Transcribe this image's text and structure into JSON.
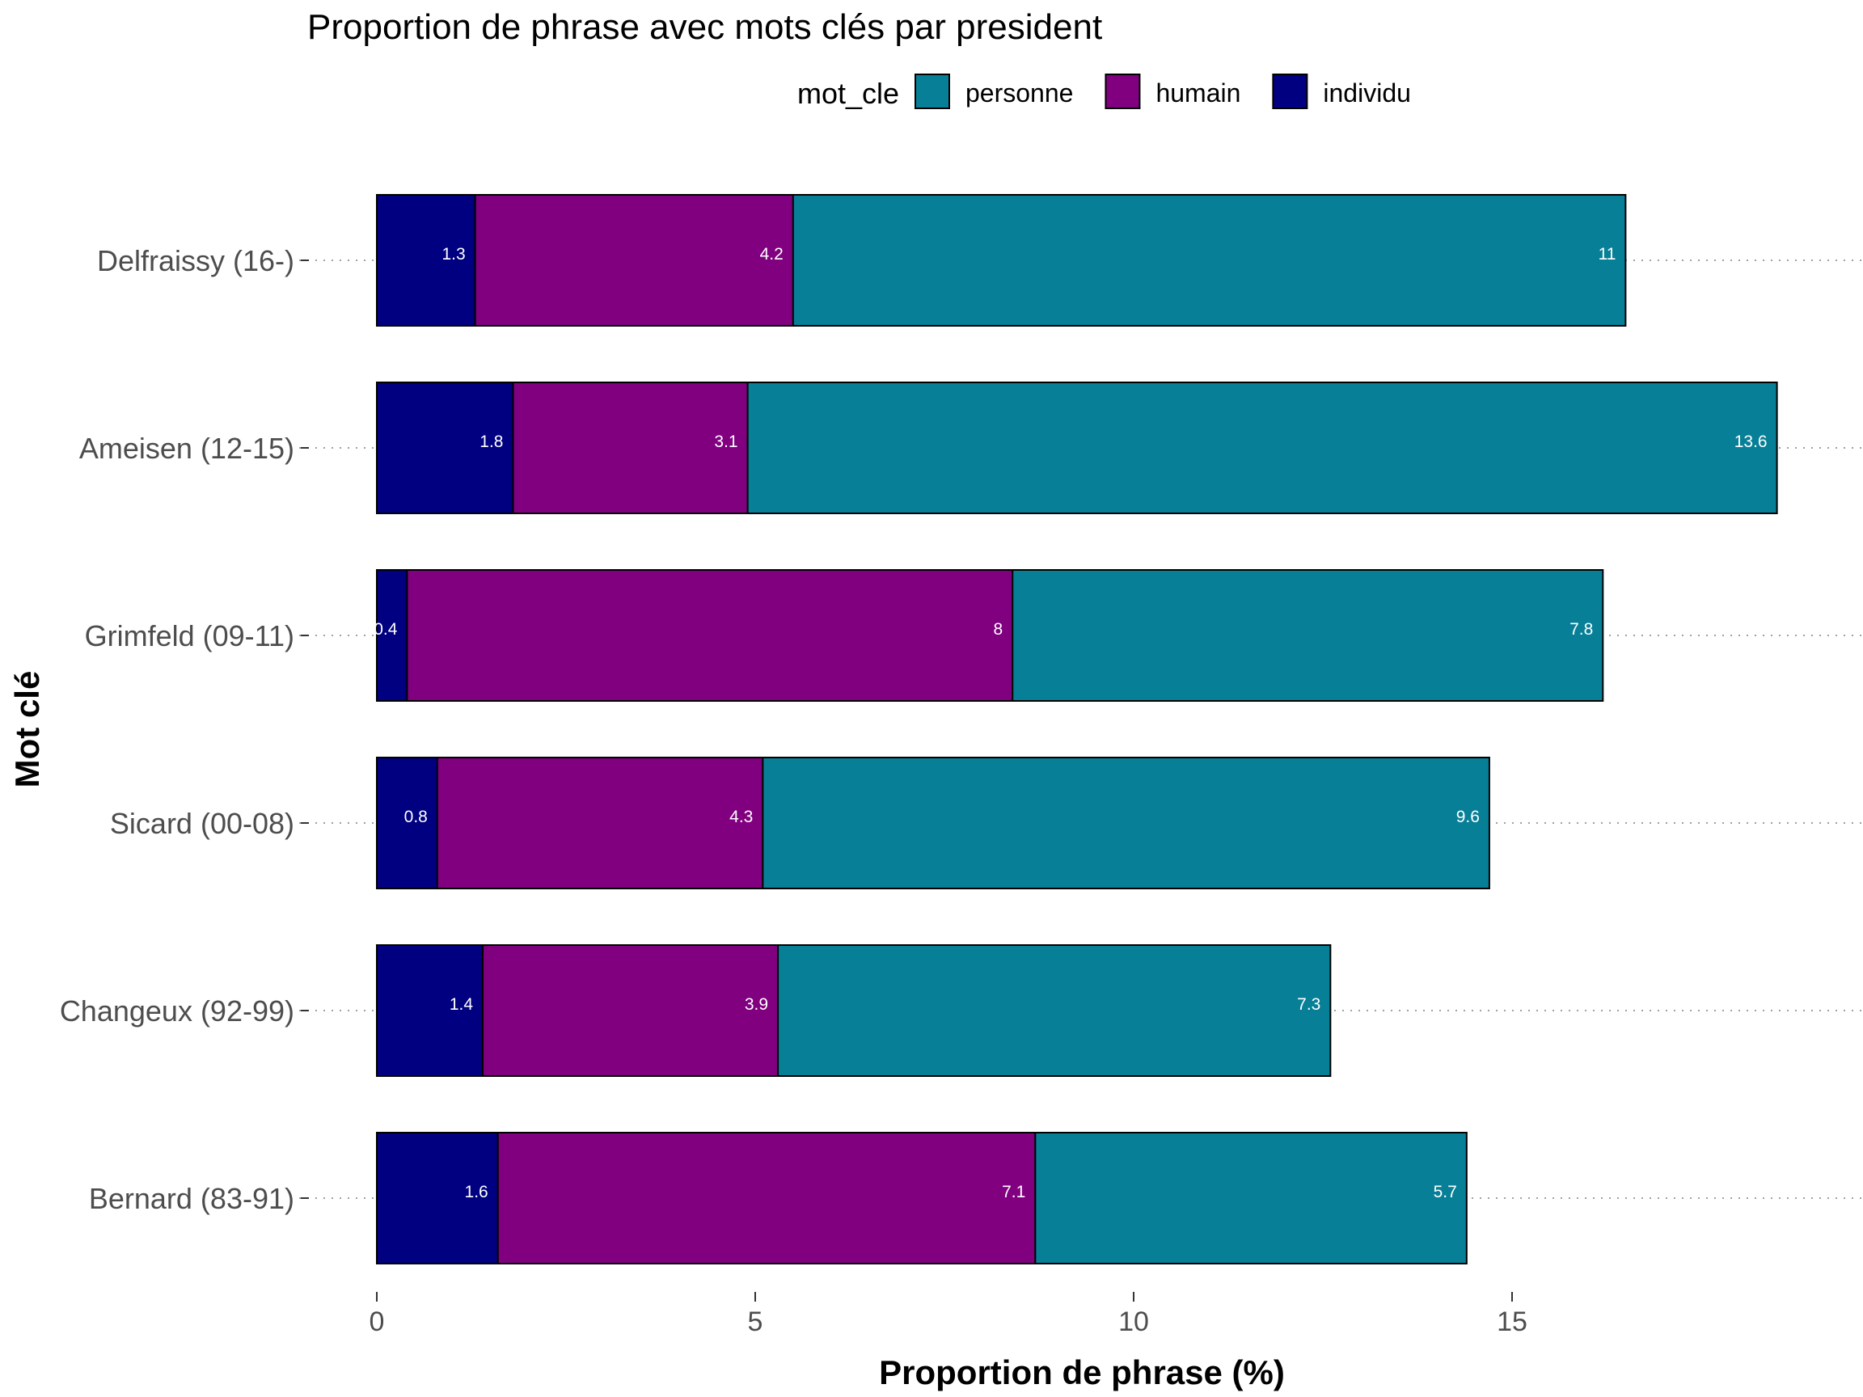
{
  "chart_data": {
    "type": "bar",
    "orientation": "horizontal",
    "stacked": true,
    "title": "Proportion de phrase avec mots clés par president",
    "xlabel": "Proportion de phrase (%)",
    "ylabel": "Mot clé",
    "legend_title": "mot_cle",
    "legend_position": "top",
    "categories": [
      "Delfraissy (16-)",
      "Ameisen (12-15)",
      "Grimfeld (09-11)",
      "Sicard (00-08)",
      "Changeux (92-99)",
      "Bernard (83-91)"
    ],
    "series": [
      {
        "name": "individu",
        "color": "#000080",
        "values": [
          1.3,
          1.8,
          0.4,
          0.8,
          1.4,
          1.6
        ],
        "labels": [
          "1.3",
          "1.8",
          "0.4",
          "0.8",
          "1.4",
          "1.6"
        ]
      },
      {
        "name": "humain",
        "color": "#800080",
        "values": [
          4.2,
          3.1,
          8,
          4.3,
          3.9,
          7.1
        ],
        "labels": [
          "4.2",
          "3.1",
          "8",
          "4.3",
          "3.9",
          "7.1"
        ]
      },
      {
        "name": "personne",
        "color": "#077F97",
        "values": [
          11,
          13.6,
          7.8,
          9.6,
          7.3,
          5.7
        ],
        "labels": [
          "11",
          "13.6",
          "7.8",
          "9.6",
          "7.3",
          "5.7"
        ]
      }
    ],
    "legend_order": [
      "personne",
      "humain",
      "individu"
    ],
    "xlim": [
      0,
      19.6
    ],
    "xticks": [
      0,
      5,
      10,
      15
    ],
    "xtick_labels": [
      "0",
      "5",
      "10",
      "15"
    ],
    "grid": "dotted horizontal"
  }
}
